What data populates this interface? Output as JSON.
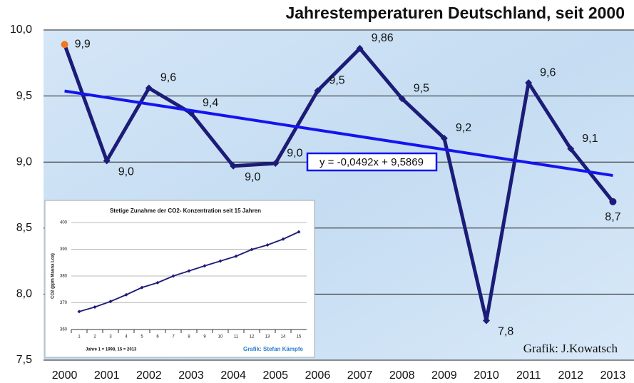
{
  "chart_data": [
    {
      "type": "line",
      "title": "Jahrestemperaturen Deutschland, seit 2000",
      "categories": [
        "2000",
        "2001",
        "2002",
        "2003",
        "2004",
        "2005",
        "2006",
        "2007",
        "2008",
        "2009",
        "2010",
        "2011",
        "2012",
        "2013"
      ],
      "values": [
        9.89,
        9.01,
        9.56,
        9.37,
        8.97,
        8.99,
        9.54,
        9.86,
        9.48,
        9.18,
        7.8,
        9.6,
        9.1,
        8.7
      ],
      "value_labels": [
        "9,9",
        "9,0",
        "9,6",
        "9,4",
        "9,0",
        "9,0",
        "9,5",
        "9,86",
        "9,5",
        "9,2",
        "7,8",
        "9,6",
        "9,1",
        "8,7"
      ],
      "color": "#1c1c78",
      "ylim": [
        7.5,
        10
      ],
      "yticks": [
        {
          "value": 7.5,
          "label": "7,5"
        },
        {
          "value": 8,
          "label": "8,0"
        },
        {
          "value": 8.5,
          "label": "8,5"
        },
        {
          "value": 9,
          "label": "9,0"
        },
        {
          "value": 9.5,
          "label": "9,5"
        },
        {
          "value": 10,
          "label": "10,0"
        }
      ],
      "grid": true,
      "trend": {
        "slope": -0.0492,
        "intercept": 9.5869,
        "label": "y = -0,0492x + 9,5869",
        "color": "#1414f0"
      },
      "credit": "Grafik:  J.Kowatsch"
    },
    {
      "type": "line",
      "title": "Stetige Zunahme der CO2- Konzentration seit 15 Jahren",
      "y_label": "CO2 (ppm Mauna Loa)",
      "categories": [
        "1",
        "2",
        "3",
        "4",
        "5",
        "6",
        "7",
        "8",
        "9",
        "10",
        "11",
        "12",
        "13",
        "14",
        "15"
      ],
      "values": [
        366.7,
        368.4,
        370.5,
        373.0,
        375.7,
        377.5,
        380.0,
        381.9,
        383.8,
        385.6,
        387.4,
        389.9,
        391.6,
        393.8,
        396.5
      ],
      "color": "#1c1c78",
      "ylim": [
        360,
        400
      ],
      "yticks": [
        360,
        370,
        380,
        390,
        400
      ],
      "grid": true,
      "note": "Jahre 1 = 1998, 15 = 2013",
      "credit": "Grafik: Stefan Kämpfe"
    }
  ]
}
